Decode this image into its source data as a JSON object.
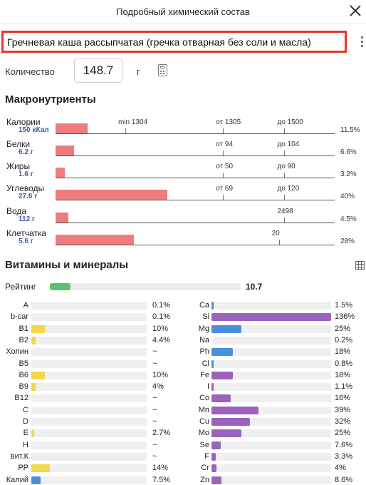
{
  "header": {
    "title": "Подробный химический состав"
  },
  "product": {
    "name": "Гречневая каша рассыпчатая (гречка отварная без соли и масла)"
  },
  "quantity": {
    "label": "Количество",
    "value": "148.7",
    "unit": "г"
  },
  "macros": {
    "title": "Макронутриенты",
    "items": [
      {
        "name": "Калории",
        "amount": "150 кКал",
        "fill_fraction": 0.115,
        "percent": "11.5%",
        "marks": [
          {
            "text": "min 1304",
            "tick": true,
            "pos": 0.25
          },
          {
            "text": "от 1305",
            "tick": true,
            "pos": 0.6
          },
          {
            "text": "до 1500",
            "tick": true,
            "pos": 0.82
          }
        ]
      },
      {
        "name": "Белки",
        "amount": "6.2 г",
        "fill_fraction": 0.066,
        "percent": "6.6%",
        "marks": [
          {
            "text": "от 94",
            "tick": true,
            "pos": 0.6
          },
          {
            "text": "до 104",
            "tick": true,
            "pos": 0.82
          }
        ]
      },
      {
        "name": "Жиры",
        "amount": "1.6 г",
        "fill_fraction": 0.032,
        "percent": "3.2%",
        "marks": [
          {
            "text": "от 50",
            "tick": true,
            "pos": 0.6
          },
          {
            "text": "до 90",
            "tick": true,
            "pos": 0.82
          }
        ]
      },
      {
        "name": "Углеводы",
        "amount": "27.6 г",
        "fill_fraction": 0.4,
        "percent": "40%",
        "marks": [
          {
            "text": "от 69",
            "tick": true,
            "pos": 0.6
          },
          {
            "text": "до 120",
            "tick": true,
            "pos": 0.82
          }
        ]
      },
      {
        "name": "Вода",
        "amount": "112 г",
        "fill_fraction": 0.045,
        "percent": "4.5%",
        "marks": [
          {
            "text": "2498",
            "tick": true,
            "pos": 0.82
          }
        ]
      },
      {
        "name": "Клетчатка",
        "amount": "5.6 г",
        "fill_fraction": 0.28,
        "percent": "28%",
        "marks": [
          {
            "text": "20",
            "tick": true,
            "pos": 0.8
          }
        ]
      }
    ]
  },
  "vitamins": {
    "title": "Витамины и минералы",
    "rating": {
      "label": "Рейтинг",
      "value": "10.7",
      "fill_fraction": 0.11
    },
    "left": [
      {
        "name": "A",
        "value": "0.1%",
        "fill": 0.0
      },
      {
        "name": "b-car",
        "value": "0.1%",
        "fill": 0.0
      },
      {
        "name": "B1",
        "value": "10%",
        "fill": 0.12
      },
      {
        "name": "B2",
        "value": "4.4%",
        "fill": 0.04
      },
      {
        "name": "Холин",
        "value": "~",
        "fill": 0
      },
      {
        "name": "B5",
        "value": "~",
        "fill": 0
      },
      {
        "name": "B6",
        "value": "10%",
        "fill": 0.12
      },
      {
        "name": "B9",
        "value": "4%",
        "fill": 0.04
      },
      {
        "name": "B12",
        "value": "~",
        "fill": 0
      },
      {
        "name": "C",
        "value": "~",
        "fill": 0
      },
      {
        "name": "D",
        "value": "~",
        "fill": 0
      },
      {
        "name": "E",
        "value": "2.7%",
        "fill": 0.025
      },
      {
        "name": "H",
        "value": "~",
        "fill": 0
      },
      {
        "name": "вит.К",
        "value": "~",
        "fill": 0
      },
      {
        "name": "PP",
        "value": "14%",
        "fill": 0.16
      },
      {
        "name": "Калий",
        "value": "7.5%",
        "fill": 0.08
      }
    ],
    "right": [
      {
        "name": "Ca",
        "value": "1.5%",
        "fill": 0.02
      },
      {
        "name": "Si",
        "value": "136%",
        "fill": 1.0
      },
      {
        "name": "Mg",
        "value": "25%",
        "fill": 0.25
      },
      {
        "name": "Na",
        "value": "0.2%",
        "fill": 0.0
      },
      {
        "name": "Ph",
        "value": "18%",
        "fill": 0.18
      },
      {
        "name": "Cl",
        "value": "0.8%",
        "fill": 0.01
      },
      {
        "name": "Fe",
        "value": "18%",
        "fill": 0.18
      },
      {
        "name": "I",
        "value": "1.1%",
        "fill": 0.01
      },
      {
        "name": "Co",
        "value": "16%",
        "fill": 0.16
      },
      {
        "name": "Mn",
        "value": "39%",
        "fill": 0.39
      },
      {
        "name": "Cu",
        "value": "32%",
        "fill": 0.32
      },
      {
        "name": "Mo",
        "value": "25%",
        "fill": 0.25
      },
      {
        "name": "Se",
        "value": "7.6%",
        "fill": 0.076
      },
      {
        "name": "F",
        "value": "3.3%",
        "fill": 0.033
      },
      {
        "name": "Cr",
        "value": "4%",
        "fill": 0.04
      },
      {
        "name": "Zn",
        "value": "8.6%",
        "fill": 0.086
      }
    ]
  },
  "colors": {
    "highlight_border": "#e8352b",
    "macro_bar": "#ef7c7c",
    "amount_text": "#3a5da8",
    "vitamin_bar": "#f0d84a",
    "mineral_bar": "#9b63bd",
    "highlight_bar": "#4a90d9",
    "rating_bar": "#5cc270"
  },
  "icons": {
    "close": "close-icon",
    "menu": "more-vertical-icon",
    "calculator": "calculator-icon",
    "table": "table-icon"
  }
}
